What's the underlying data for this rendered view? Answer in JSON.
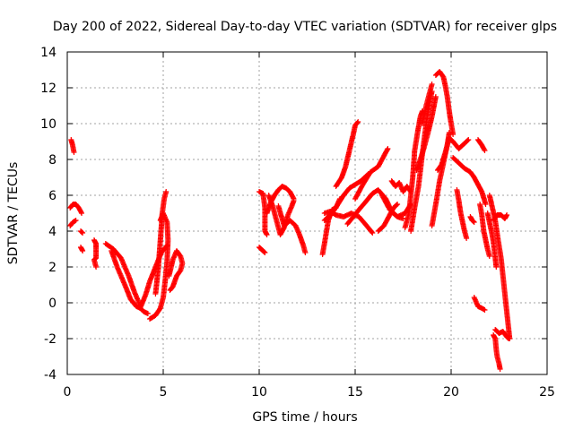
{
  "chart_data": {
    "type": "scatter",
    "title": "Day 200 of 2022, Sidereal Day-to-day VTEC variation (SDTVAR) for receiver glps",
    "xlabel": "GPS time / hours",
    "ylabel": "SDTVAR / TECUs",
    "xlim": [
      0,
      25
    ],
    "ylim": [
      -4,
      14
    ],
    "xticks": [
      0,
      5,
      10,
      15,
      20,
      25
    ],
    "yticks": [
      -4,
      -2,
      0,
      2,
      4,
      6,
      8,
      10,
      12,
      14
    ],
    "grid": true,
    "marker": "+",
    "marker_color": "#ff0000",
    "tracks": [
      [
        [
          0.2,
          9.1
        ],
        [
          0.28,
          8.8
        ],
        [
          0.35,
          8.4
        ]
      ],
      [
        [
          0.15,
          5.3
        ],
        [
          0.3,
          5.5
        ],
        [
          0.45,
          5.5
        ],
        [
          0.6,
          5.3
        ],
        [
          0.75,
          5.0
        ]
      ],
      [
        [
          0.15,
          4.3
        ],
        [
          0.3,
          4.5
        ],
        [
          0.45,
          4.6
        ]
      ],
      [
        [
          0.7,
          4.0
        ],
        [
          0.8,
          3.9
        ]
      ],
      [
        [
          0.7,
          3.1
        ],
        [
          0.8,
          2.9
        ]
      ],
      [
        [
          1.4,
          3.5
        ],
        [
          1.5,
          3.3
        ],
        [
          1.5,
          3.0
        ],
        [
          1.5,
          2.5
        ],
        [
          1.4,
          2.4
        ],
        [
          1.5,
          2.0
        ]
      ],
      [
        [
          2.0,
          3.3
        ],
        [
          2.4,
          3.0
        ],
        [
          2.8,
          2.5
        ],
        [
          3.2,
          1.5
        ],
        [
          3.5,
          0.6
        ],
        [
          3.7,
          0.1
        ],
        [
          3.8,
          -0.3
        ],
        [
          4.0,
          -0.5
        ],
        [
          4.2,
          -0.6
        ]
      ],
      [
        [
          2.3,
          2.9
        ],
        [
          2.6,
          2.0
        ],
        [
          3.0,
          1.0
        ],
        [
          3.3,
          0.2
        ],
        [
          3.6,
          -0.2
        ],
        [
          3.8,
          -0.3
        ],
        [
          4.1,
          0.5
        ],
        [
          4.3,
          1.2
        ],
        [
          4.6,
          2.0
        ],
        [
          4.9,
          2.8
        ],
        [
          5.2,
          3.2
        ]
      ],
      [
        [
          4.3,
          -0.9
        ],
        [
          4.6,
          -0.7
        ],
        [
          4.85,
          -0.3
        ],
        [
          5.0,
          0.3
        ],
        [
          5.1,
          1.2
        ],
        [
          5.2,
          2.3
        ],
        [
          5.25,
          3.5
        ],
        [
          5.2,
          4.5
        ],
        [
          5.0,
          5.0
        ],
        [
          4.85,
          4.6
        ]
      ],
      [
        [
          4.6,
          0.5
        ],
        [
          4.75,
          2.0
        ],
        [
          4.85,
          3.5
        ],
        [
          4.95,
          5.0
        ],
        [
          5.05,
          5.8
        ],
        [
          5.15,
          6.2
        ]
      ],
      [
        [
          5.3,
          1.5
        ],
        [
          5.5,
          2.4
        ],
        [
          5.7,
          2.9
        ],
        [
          5.9,
          2.6
        ],
        [
          6.0,
          2.2
        ],
        [
          5.9,
          1.8
        ],
        [
          5.7,
          1.5
        ],
        [
          5.5,
          0.9
        ],
        [
          5.35,
          0.7
        ]
      ],
      [
        [
          10.0,
          3.1
        ],
        [
          10.1,
          3.0
        ],
        [
          10.2,
          2.9
        ],
        [
          10.3,
          2.8
        ]
      ],
      [
        [
          10.0,
          6.2
        ],
        [
          10.2,
          6.1
        ],
        [
          10.3,
          5.3
        ],
        [
          10.3,
          4.0
        ],
        [
          10.4,
          3.8
        ]
      ],
      [
        [
          10.5,
          6.0
        ],
        [
          10.7,
          5.4
        ],
        [
          10.9,
          4.6
        ],
        [
          11.1,
          3.8
        ],
        [
          11.3,
          4.2
        ],
        [
          11.5,
          4.9
        ],
        [
          11.7,
          5.4
        ],
        [
          11.8,
          5.7
        ]
      ],
      [
        [
          10.4,
          5.0
        ],
        [
          10.6,
          5.6
        ],
        [
          10.8,
          6.0
        ],
        [
          11.0,
          6.3
        ],
        [
          11.2,
          6.5
        ],
        [
          11.4,
          6.4
        ],
        [
          11.6,
          6.2
        ],
        [
          11.8,
          5.8
        ]
      ],
      [
        [
          11.0,
          5.4
        ],
        [
          11.3,
          4.3
        ],
        [
          11.6,
          4.6
        ],
        [
          11.9,
          4.3
        ],
        [
          12.1,
          3.8
        ],
        [
          12.3,
          3.2
        ],
        [
          12.4,
          2.8
        ]
      ],
      [
        [
          13.3,
          2.7
        ],
        [
          13.4,
          3.3
        ],
        [
          13.6,
          4.6
        ],
        [
          13.8,
          5.2
        ],
        [
          14.0,
          5.3
        ],
        [
          14.2,
          5.8
        ]
      ],
      [
        [
          13.4,
          4.6
        ],
        [
          13.8,
          5.0
        ],
        [
          14.1,
          5.5
        ],
        [
          14.4,
          6.0
        ],
        [
          14.7,
          6.4
        ],
        [
          15.0,
          6.6
        ],
        [
          15.3,
          6.8
        ],
        [
          15.7,
          7.2
        ]
      ],
      [
        [
          13.4,
          5.0
        ],
        [
          13.7,
          5.1
        ],
        [
          14.0,
          4.9
        ],
        [
          14.4,
          4.8
        ],
        [
          14.8,
          5.0
        ],
        [
          15.2,
          4.8
        ],
        [
          15.6,
          4.3
        ],
        [
          15.9,
          3.9
        ]
      ],
      [
        [
          14.0,
          6.5
        ],
        [
          14.3,
          7.0
        ],
        [
          14.5,
          7.6
        ],
        [
          14.7,
          8.5
        ],
        [
          14.9,
          9.4
        ],
        [
          15.0,
          9.9
        ],
        [
          15.15,
          10.1
        ]
      ],
      [
        [
          14.6,
          4.4
        ],
        [
          14.9,
          4.8
        ],
        [
          15.2,
          5.2
        ],
        [
          15.6,
          5.7
        ],
        [
          15.9,
          6.1
        ],
        [
          16.2,
          6.3
        ],
        [
          16.6,
          5.8
        ],
        [
          16.9,
          5.1
        ],
        [
          17.2,
          4.8
        ],
        [
          17.5,
          4.7
        ]
      ],
      [
        [
          15.0,
          5.8
        ],
        [
          15.4,
          6.6
        ],
        [
          15.8,
          7.3
        ],
        [
          16.2,
          7.6
        ],
        [
          16.5,
          8.2
        ],
        [
          16.7,
          8.6
        ]
      ],
      [
        [
          16.2,
          4.0
        ],
        [
          16.5,
          4.3
        ],
        [
          16.8,
          4.9
        ],
        [
          17.0,
          5.3
        ],
        [
          17.2,
          5.5
        ]
      ],
      [
        [
          16.4,
          6.0
        ],
        [
          16.8,
          5.2
        ],
        [
          17.2,
          4.8
        ],
        [
          17.6,
          5.0
        ],
        [
          17.9,
          5.5
        ]
      ],
      [
        [
          16.9,
          6.8
        ],
        [
          17.1,
          6.5
        ],
        [
          17.3,
          6.7
        ],
        [
          17.5,
          6.2
        ],
        [
          17.7,
          6.5
        ],
        [
          17.9,
          6.2
        ]
      ],
      [
        [
          17.6,
          4.2
        ],
        [
          17.8,
          5.0
        ],
        [
          17.9,
          6.0
        ],
        [
          18.0,
          7.0
        ],
        [
          18.1,
          8.5
        ],
        [
          18.25,
          9.5
        ],
        [
          18.4,
          10.4
        ],
        [
          18.5,
          10.7
        ]
      ],
      [
        [
          17.9,
          4.0
        ],
        [
          18.1,
          5.3
        ],
        [
          18.3,
          6.5
        ],
        [
          18.5,
          8.3
        ],
        [
          18.7,
          10.0
        ],
        [
          18.9,
          11.3
        ],
        [
          19.0,
          11.8
        ]
      ],
      [
        [
          18.2,
          7.4
        ],
        [
          18.4,
          8.0
        ],
        [
          18.6,
          8.7
        ],
        [
          18.8,
          9.5
        ],
        [
          19.0,
          10.4
        ],
        [
          19.2,
          11.5
        ]
      ],
      [
        [
          18.5,
          10.0
        ],
        [
          18.7,
          11.0
        ],
        [
          18.9,
          11.8
        ],
        [
          19.0,
          12.2
        ]
      ],
      [
        [
          19.2,
          12.7
        ],
        [
          19.4,
          12.9
        ],
        [
          19.6,
          12.6
        ],
        [
          19.7,
          12.1
        ],
        [
          19.8,
          11.5
        ],
        [
          19.9,
          10.7
        ],
        [
          20.0,
          10.0
        ],
        [
          20.1,
          9.4
        ]
      ],
      [
        [
          19.0,
          4.3
        ],
        [
          19.2,
          5.5
        ],
        [
          19.4,
          6.8
        ],
        [
          19.6,
          7.8
        ],
        [
          19.8,
          8.8
        ],
        [
          19.9,
          9.5
        ]
      ],
      [
        [
          19.3,
          7.4
        ],
        [
          19.5,
          7.7
        ],
        [
          19.7,
          8.4
        ],
        [
          19.9,
          9.2
        ],
        [
          20.1,
          9.0
        ],
        [
          20.4,
          8.6
        ],
        [
          20.7,
          8.9
        ],
        [
          20.9,
          9.1
        ]
      ],
      [
        [
          20.1,
          8.1
        ],
        [
          20.4,
          7.8
        ],
        [
          20.7,
          7.5
        ],
        [
          21.0,
          7.3
        ],
        [
          21.2,
          7.0
        ],
        [
          21.4,
          6.6
        ],
        [
          21.6,
          6.2
        ],
        [
          21.8,
          5.5
        ]
      ],
      [
        [
          20.3,
          6.3
        ],
        [
          20.4,
          5.7
        ],
        [
          20.5,
          5.0
        ],
        [
          20.6,
          4.5
        ],
        [
          20.7,
          4.0
        ],
        [
          20.8,
          3.6
        ]
      ],
      [
        [
          21.0,
          4.8
        ],
        [
          21.1,
          4.6
        ],
        [
          21.2,
          4.5
        ]
      ],
      [
        [
          21.2,
          0.3
        ],
        [
          21.4,
          -0.2
        ],
        [
          21.6,
          -0.3
        ],
        [
          21.75,
          -0.4
        ]
      ],
      [
        [
          21.4,
          9.1
        ],
        [
          21.6,
          8.8
        ],
        [
          21.75,
          8.5
        ]
      ],
      [
        [
          21.5,
          5.5
        ],
        [
          21.6,
          4.9
        ],
        [
          21.7,
          4.0
        ],
        [
          21.8,
          3.5
        ],
        [
          21.9,
          3.0
        ],
        [
          22.0,
          2.6
        ]
      ],
      [
        [
          21.9,
          5.0
        ],
        [
          22.0,
          4.5
        ],
        [
          22.1,
          4.0
        ],
        [
          22.2,
          3.4
        ],
        [
          22.3,
          2.5
        ],
        [
          22.35,
          2.0
        ]
      ],
      [
        [
          22.0,
          6.0
        ],
        [
          22.15,
          5.3
        ],
        [
          22.3,
          4.6
        ],
        [
          22.45,
          3.5
        ],
        [
          22.6,
          2.5
        ],
        [
          22.7,
          1.5
        ],
        [
          22.8,
          0.5
        ],
        [
          22.9,
          -0.5
        ],
        [
          23.0,
          -1.5
        ],
        [
          23.05,
          -2.0
        ]
      ],
      [
        [
          22.2,
          4.6
        ],
        [
          22.4,
          4.9
        ],
        [
          22.6,
          4.9
        ],
        [
          22.8,
          4.7
        ],
        [
          22.9,
          4.9
        ]
      ],
      [
        [
          22.2,
          -1.8
        ],
        [
          22.3,
          -2.0
        ],
        [
          22.35,
          -2.6
        ],
        [
          22.4,
          -3.0
        ],
        [
          22.5,
          -3.4
        ],
        [
          22.55,
          -3.7
        ]
      ],
      [
        [
          22.3,
          -1.5
        ],
        [
          22.5,
          -1.7
        ],
        [
          22.7,
          -1.6
        ],
        [
          22.9,
          -1.9
        ],
        [
          23.0,
          -2.0
        ]
      ]
    ]
  }
}
